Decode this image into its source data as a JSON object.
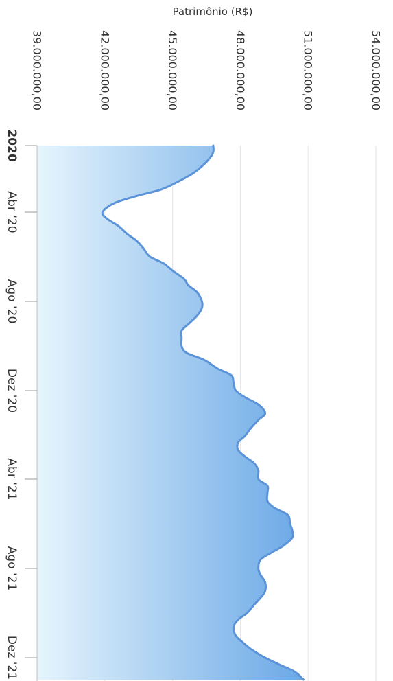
{
  "chart_data": {
    "type": "area",
    "title": "",
    "ylabel": "Patrimônio (R$)",
    "xlabel": "",
    "ylim": [
      39000000,
      54000000
    ],
    "y_ticks": [
      39000000,
      42000000,
      45000000,
      48000000,
      51000000,
      54000000
    ],
    "y_tick_labels": [
      "39.000.000,00",
      "42.000.000,00",
      "45.000.000,00",
      "48.000.000,00",
      "51.000.000,00",
      "54.000.000,00"
    ],
    "x_ticks": [
      {
        "label": "2020",
        "date": "2020-01-01",
        "major": true
      },
      {
        "label": "Abr '20",
        "date": "2020-04-01",
        "major": false
      },
      {
        "label": "Ago '20",
        "date": "2020-08-01",
        "major": false
      },
      {
        "label": "Dez '20",
        "date": "2020-12-01",
        "major": false
      },
      {
        "label": "Abr '21",
        "date": "2021-04-01",
        "major": false
      },
      {
        "label": "Ago '21",
        "date": "2021-08-01",
        "major": false
      },
      {
        "label": "Dez '21",
        "date": "2021-12-01",
        "major": false
      }
    ],
    "grid": true,
    "colors": {
      "line": "#5b93d8",
      "fill_top": "#6aa8e6",
      "fill_bottom": "#e6f5fd"
    },
    "series": [
      {
        "x": [
          "2020-01-01",
          "2020-01-10",
          "2020-01-20",
          "2020-02-01",
          "2020-02-10",
          "2020-02-20",
          "2020-03-01",
          "2020-03-10",
          "2020-03-20",
          "2020-04-01",
          "2020-04-10",
          "2020-04-20",
          "2020-05-01",
          "2020-05-10",
          "2020-05-20",
          "2020-06-01",
          "2020-06-10",
          "2020-06-20",
          "2020-07-01",
          "2020-07-10",
          "2020-07-20",
          "2020-08-01",
          "2020-08-10",
          "2020-08-20",
          "2020-09-01",
          "2020-09-10",
          "2020-09-20",
          "2020-10-01",
          "2020-10-10",
          "2020-10-20",
          "2020-11-01",
          "2020-11-10",
          "2020-11-20",
          "2020-12-01",
          "2020-12-10",
          "2020-12-20",
          "2021-01-01",
          "2021-01-10",
          "2021-01-20",
          "2021-02-01",
          "2021-02-10",
          "2021-02-20",
          "2021-03-01",
          "2021-03-10",
          "2021-03-20",
          "2021-04-01",
          "2021-04-10",
          "2021-04-20",
          "2021-05-01",
          "2021-05-10",
          "2021-05-20",
          "2021-06-01",
          "2021-06-10",
          "2021-06-20",
          "2021-07-01",
          "2021-07-10",
          "2021-07-20",
          "2021-08-01",
          "2021-08-10",
          "2021-08-20",
          "2021-09-01",
          "2021-09-10",
          "2021-09-20",
          "2021-10-01",
          "2021-10-10",
          "2021-10-20",
          "2021-11-01",
          "2021-11-10",
          "2021-11-20",
          "2021-12-01",
          "2021-12-10",
          "2021-12-20",
          "2021-12-31"
        ],
        "values": [
          46800000,
          46800000,
          46600000,
          46200000,
          45800000,
          45200000,
          44500000,
          43400000,
          42400000,
          41900000,
          42100000,
          42600000,
          43000000,
          43400000,
          43700000,
          44000000,
          44600000,
          45000000,
          45500000,
          45700000,
          46100000,
          46300000,
          46300000,
          46100000,
          45700000,
          45400000,
          45400000,
          45400000,
          45600000,
          46400000,
          47000000,
          47600000,
          47700000,
          47800000,
          48200000,
          48800000,
          49100000,
          48800000,
          48500000,
          48200000,
          47900000,
          47900000,
          48200000,
          48600000,
          48800000,
          48800000,
          49200000,
          49200000,
          49200000,
          49500000,
          50100000,
          50200000,
          50300000,
          50300000,
          49900000,
          49400000,
          48900000,
          48800000,
          48900000,
          49100000,
          49100000,
          48900000,
          48600000,
          48300000,
          47900000,
          47700000,
          47800000,
          48100000,
          48500000,
          49100000,
          49700000,
          50400000,
          50800000
        ]
      }
    ]
  }
}
